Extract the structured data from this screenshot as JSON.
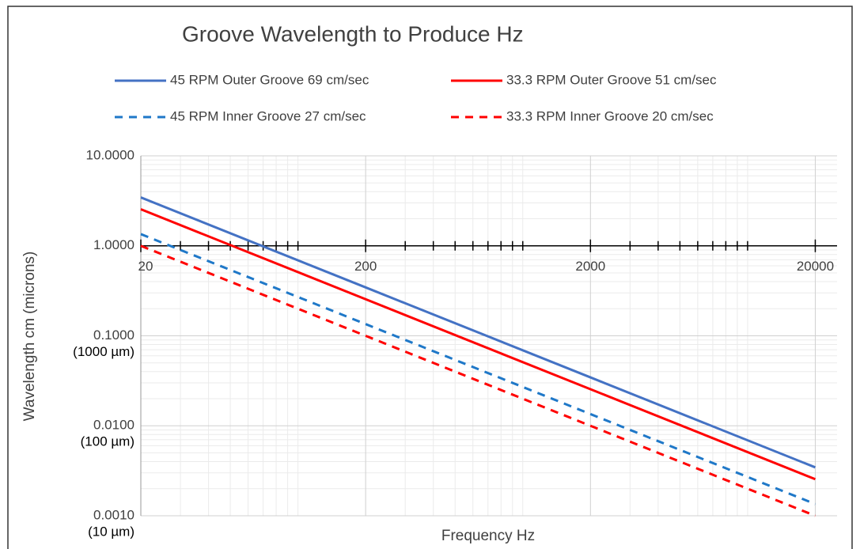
{
  "chart_data": {
    "type": "line",
    "title": "Groove Wavelength to Produce Hz",
    "x_label": "Frequency Hz",
    "y_label": "Wavelength  cm (microns)",
    "x": [
      20,
      200,
      2000,
      20000
    ],
    "series": [
      {
        "name": "45 RPM Outer Groove 69 cm/sec",
        "color": "#4472c4",
        "dashed": false,
        "values": [
          3.45,
          0.345,
          0.0345,
          0.00345
        ]
      },
      {
        "name": "33.3 RPM Outer Groove 51 cm/sec",
        "color": "#ff0000",
        "dashed": false,
        "values": [
          2.55,
          0.255,
          0.0255,
          0.00255
        ]
      },
      {
        "name": "45 RPM Inner Groove 27 cm/sec",
        "color": "#1f78c8",
        "dashed": true,
        "values": [
          1.35,
          0.135,
          0.0135,
          0.00135
        ]
      },
      {
        "name": "33.3 RPM Inner Groove 20 cm/sec",
        "color": "#ff0000",
        "dashed": true,
        "values": [
          1.0,
          0.1,
          0.01,
          0.001
        ]
      }
    ],
    "xlog": true,
    "ylog": true,
    "xlim": [
      20,
      25000
    ],
    "ylim": [
      0.001,
      10
    ],
    "xticks": [
      20,
      200,
      2000,
      20000
    ],
    "xminorticks": [
      30,
      40,
      50,
      60,
      70,
      80,
      90,
      100,
      300,
      400,
      500,
      600,
      700,
      800,
      900,
      1000,
      3000,
      4000,
      5000,
      6000,
      7000,
      8000,
      9000,
      10000
    ],
    "yticks": [
      {
        "value": 10,
        "label": "10.0000"
      },
      {
        "value": 1,
        "label": "1.0000"
      },
      {
        "value": 0.1,
        "label": "0.1000"
      },
      {
        "value": 0.01,
        "label": "0.0100"
      },
      {
        "value": 0.001,
        "label": "0.0010"
      }
    ],
    "yminorticks": [
      0.002,
      0.003,
      0.004,
      0.005,
      0.006,
      0.007,
      0.008,
      0.009,
      0.02,
      0.03,
      0.04,
      0.05,
      0.06,
      0.07,
      0.08,
      0.09,
      0.2,
      0.3,
      0.4,
      0.5,
      0.6,
      0.7,
      0.8,
      0.9,
      2,
      3,
      4,
      5,
      6,
      7,
      8,
      9
    ],
    "x_axis_crosses": 1,
    "ytick_notes": [
      {
        "value": 0.1,
        "text": "(1000 µm)"
      },
      {
        "value": 0.01,
        "text": "(100 µm)"
      },
      {
        "value": 0.001,
        "text": "(10 µm)"
      }
    ],
    "grid": true,
    "legend": "top"
  }
}
